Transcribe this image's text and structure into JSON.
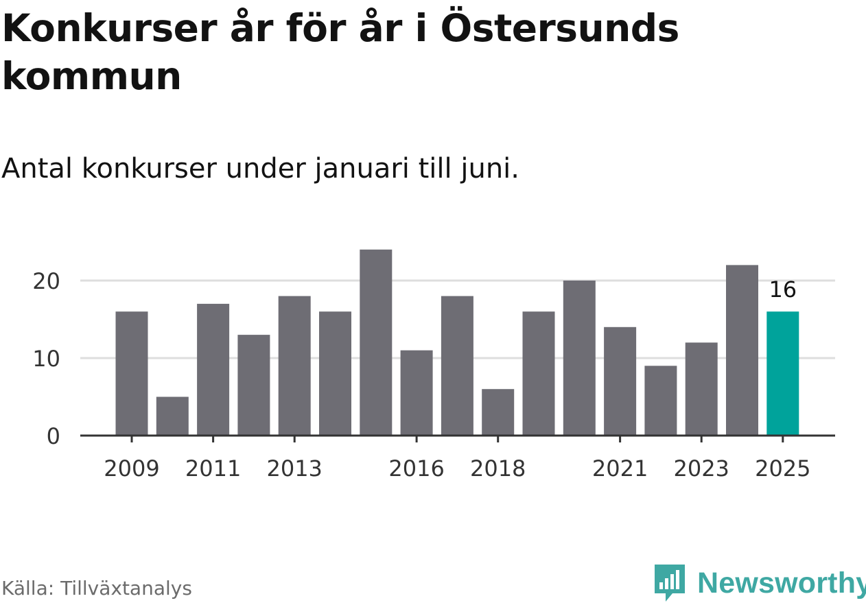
{
  "title": "Konkurser år för år i Östersunds kommun",
  "subtitle": "Antal konkurser under januari till juni.",
  "source": "Källa: Tillväxtanalys",
  "brand": "Newsworthy",
  "colors": {
    "bar": "#6e6d74",
    "highlight": "#00a39b",
    "grid": "#dedede",
    "axis": "#333333",
    "brand": "#3fa8a3"
  },
  "chart_data": {
    "type": "bar",
    "categories": [
      "2009",
      "2010",
      "2011",
      "2012",
      "2013",
      "2014",
      "2015",
      "2016",
      "2017",
      "2018",
      "2019",
      "2020",
      "2021",
      "2022",
      "2023",
      "2024",
      "2025"
    ],
    "values": [
      16,
      5,
      17,
      13,
      18,
      16,
      24,
      11,
      18,
      6,
      16,
      20,
      14,
      9,
      12,
      22,
      16
    ],
    "xtick_labels": [
      "2009",
      "2011",
      "2013",
      "2016",
      "2018",
      "2021",
      "2023",
      "2025"
    ],
    "yticks": [
      0,
      10,
      20
    ],
    "ylim": [
      0,
      25
    ],
    "highlight_category": "2025",
    "highlight_label": "16",
    "xlabel": "",
    "ylabel": "",
    "grid": true
  }
}
